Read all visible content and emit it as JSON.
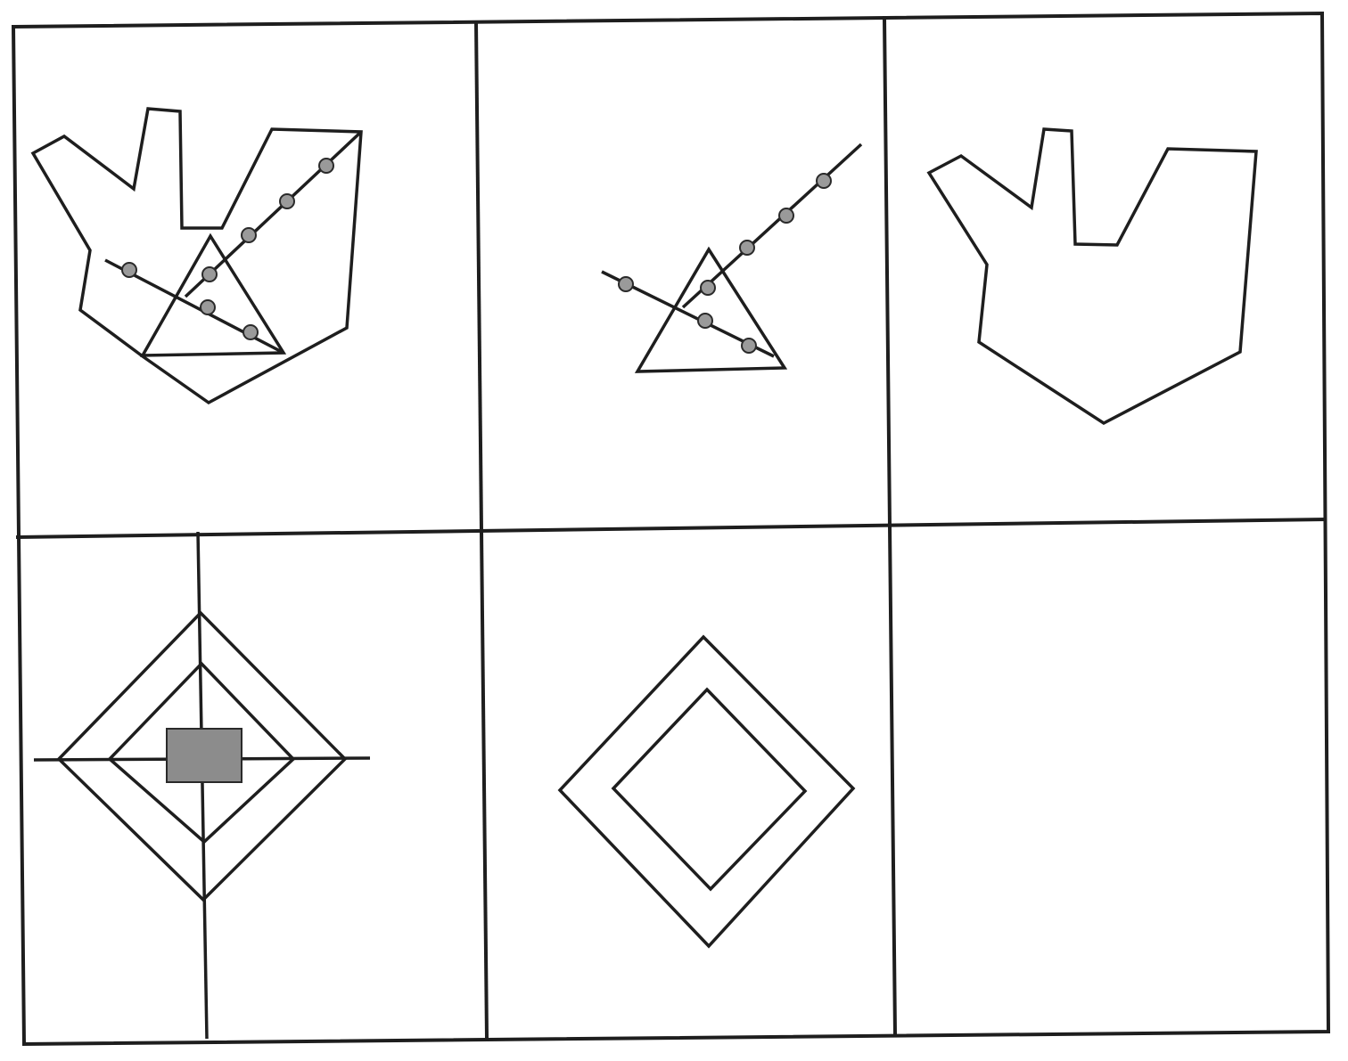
{
  "puzzle": {
    "rows": 2,
    "cols": 3,
    "line_color": "#1e1e1e",
    "dot_color": "#9a9a9a",
    "square_fill_color": "#8c8c8c",
    "cells": [
      {
        "row": 1,
        "col": 1,
        "content": [
          "irregular-polygon",
          "triangle",
          "dotted-line",
          "dotted-line"
        ]
      },
      {
        "row": 1,
        "col": 2,
        "content": [
          "triangle",
          "dotted-line",
          "dotted-line"
        ]
      },
      {
        "row": 1,
        "col": 3,
        "content": [
          "irregular-polygon"
        ]
      },
      {
        "row": 2,
        "col": 1,
        "content": [
          "diamond",
          "diamond",
          "crosshair",
          "gray-square"
        ]
      },
      {
        "row": 2,
        "col": 2,
        "content": [
          "diamond",
          "diamond"
        ]
      },
      {
        "row": 2,
        "col": 3,
        "content": []
      }
    ]
  }
}
